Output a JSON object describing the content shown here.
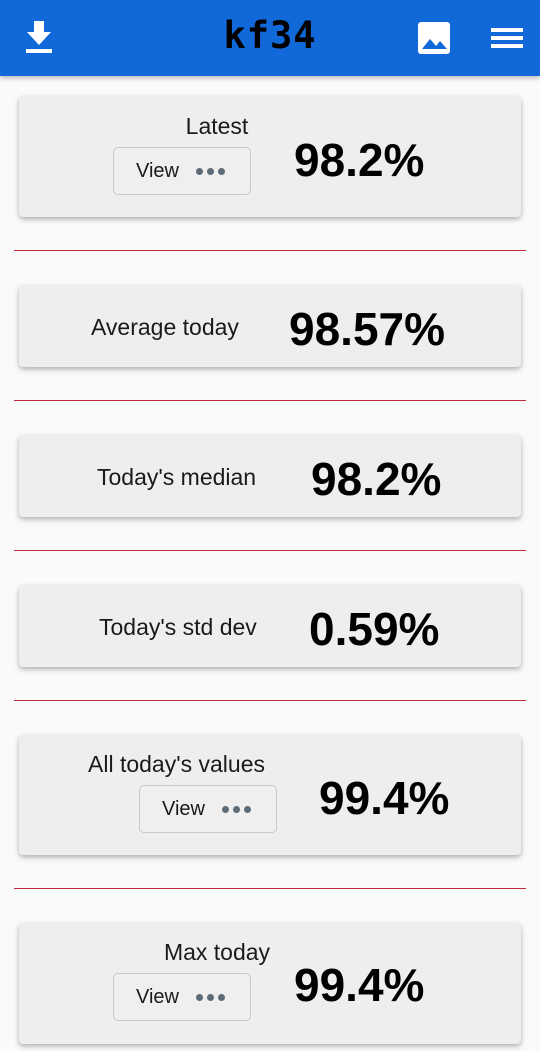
{
  "appbar": {
    "title": "kf34",
    "icons": [
      "download-icon",
      "image-icon",
      "menu-icon"
    ],
    "color": "#1168d8"
  },
  "cards": [
    {
      "label": "Latest",
      "value": "98.2%",
      "view_label": "View"
    },
    {
      "label": "Average today",
      "value": "98.57%"
    },
    {
      "label": "Today's median",
      "value": "98.2%"
    },
    {
      "label": "Today's std dev",
      "value": "0.59%"
    },
    {
      "label": "All today's values",
      "value": "99.4%",
      "view_label": "View"
    },
    {
      "label": "Max today",
      "value": "99.4%",
      "view_label": "View"
    }
  ],
  "divider_color": "#c0283a"
}
